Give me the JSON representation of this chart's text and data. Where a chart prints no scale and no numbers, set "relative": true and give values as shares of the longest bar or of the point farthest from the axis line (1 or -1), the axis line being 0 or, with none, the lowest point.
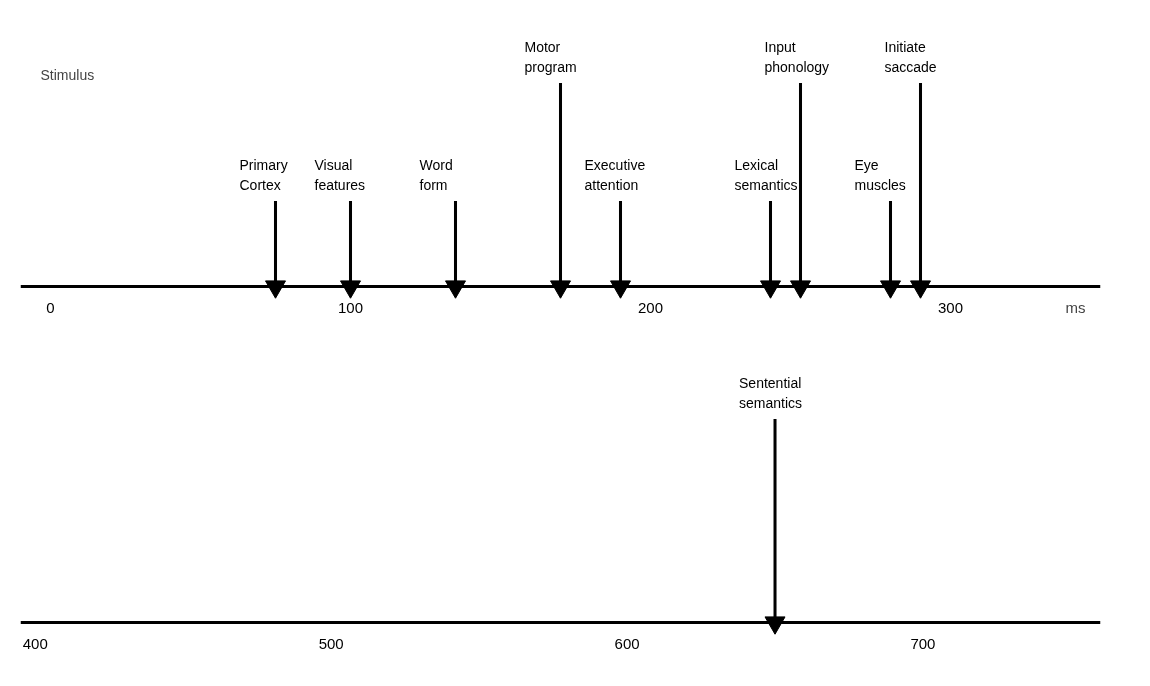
{
  "chart_data": [
    {
      "type": "bar",
      "relative": true,
      "x": [
        75,
        100,
        135,
        170,
        190,
        240,
        250,
        280,
        290
      ],
      "xlim": [
        -10,
        350
      ],
      "xticks": [
        0,
        100,
        200,
        300
      ],
      "xlabel": "ms",
      "tick_labels": "x",
      "marker": "triangle",
      "series": [
        {
          "color": "#000000",
          "values": [
            0.42,
            0.42,
            0.42,
            1,
            0.42,
            0.42,
            1,
            0.42,
            1
          ]
        },
        {
          "type": "scatter",
          "color": "#000000",
          "values": [
            0,
            0,
            0,
            0,
            0,
            0,
            0,
            0,
            0
          ]
        }
      ],
      "annotations": [
        "Stimulus",
        {
          "text": "Primary\nCortex",
          "x": 75,
          "y": 0.42
        },
        {
          "text": "Visual\nfeatures",
          "x": 100,
          "y": 0.42
        },
        {
          "text": "Word\nform",
          "x": 135,
          "y": 0.42
        },
        {
          "text": "Motor\nprogram",
          "x": 170,
          "y": 1
        },
        {
          "text": "Executive\nattention",
          "x": 190,
          "y": 0.42
        },
        {
          "text": "Lexical\nsemantics",
          "x": 240,
          "y": 0.42
        },
        {
          "text": "Input\nphonology",
          "x": 250,
          "y": 1
        },
        {
          "text": "Eye\nmuscles",
          "x": 280,
          "y": 0.42
        },
        {
          "text": "Initiate\nsaccade",
          "x": 290,
          "y": 1
        }
      ]
    },
    {
      "type": "bar",
      "relative": true,
      "x": [
        650
      ],
      "xlim": [
        395,
        760
      ],
      "xticks": [
        400,
        500,
        600,
        700
      ],
      "tick_labels": "x",
      "marker": "triangle",
      "series": [
        {
          "color": "#000000",
          "values": [
            1
          ]
        },
        {
          "type": "scatter",
          "color": "#000000",
          "values": [
            0
          ]
        }
      ],
      "annotations": [
        {
          "text": "Sentential\nsemantics",
          "x": 650,
          "y": 1
        }
      ]
    }
  ]
}
